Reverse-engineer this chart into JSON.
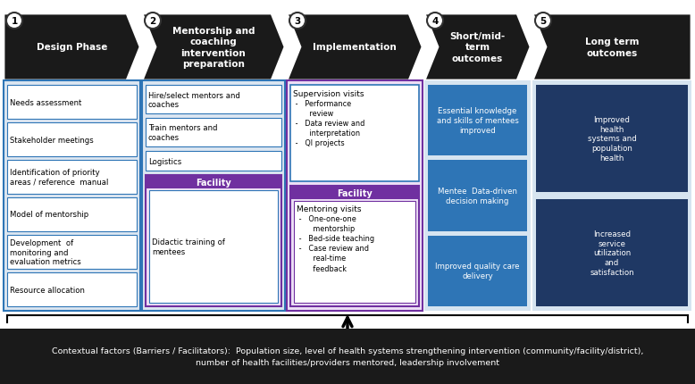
{
  "background": "#ffffff",
  "arrow_color": "#1a1a1a",
  "cols": [
    {
      "num": "1",
      "label": "Design Phase",
      "first": true,
      "last": false
    },
    {
      "num": "2",
      "label": "Mentorship and\ncoaching\nintervention\npreparation",
      "first": false,
      "last": false
    },
    {
      "num": "3",
      "label": "Implementation",
      "first": false,
      "last": false
    },
    {
      "num": "4",
      "label": "Short/mid-\nterm\noutcomes",
      "first": false,
      "last": false
    },
    {
      "num": "5",
      "label": "Long term\noutcomes",
      "first": false,
      "last": true
    }
  ],
  "col1_items": [
    "Needs assessment",
    "Stakeholder meetings",
    "Identification of priority\nareas / reference  manual",
    "Model of mentorship",
    "Development  of\nmonitoring and\nevaluation metrics",
    "Resource allocation"
  ],
  "col4_items": [
    "Essential knowledge\nand skills of mentees\nimproved",
    "Mentee  Data-driven\ndecision making",
    "Improved quality care\ndelivery"
  ],
  "col5_items": [
    "Improved\nhealth\nsystems and\npopulation\nhealth",
    "Increased\nservice\nutilization\nand\nsatisfaction"
  ],
  "bottom_text": "Contextual factors (Barriers / Facilitators):  Population size, level of health systems strengthening intervention (community/facility/district),\nnumber of health facilities/providers mentored, leadership involvement",
  "purple": "#7030a0",
  "blue_dark": "#1f3864",
  "blue_mid": "#2e75b6",
  "blue_light_bg": "#dce6f1",
  "col4_bg": "#d6e4f0",
  "col5_bg": "#d6e4f0",
  "bottom_bg": "#1a1a1a"
}
